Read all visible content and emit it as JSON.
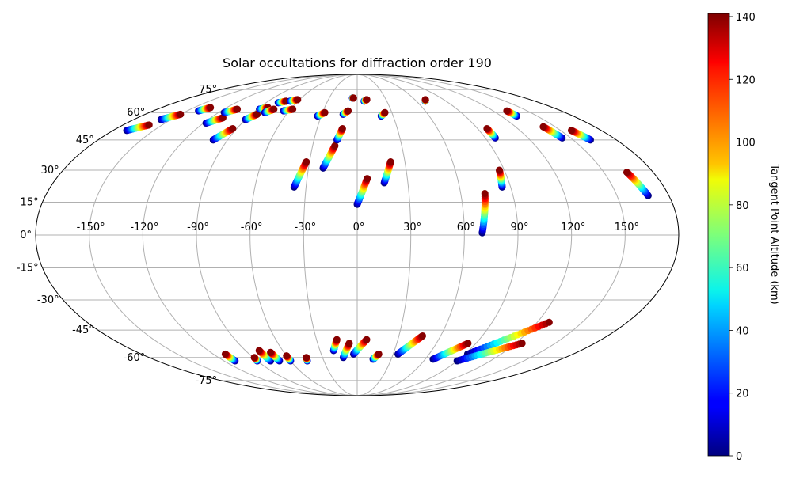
{
  "chart_data": {
    "type": "scatter",
    "projection": "mollweide",
    "title": "Solar occultations for diffraction order 190",
    "xlabel": "",
    "ylabel": "",
    "lon_ticks": [
      {
        "value": -150,
        "label": "-150°"
      },
      {
        "value": -120,
        "label": "-120°"
      },
      {
        "value": -90,
        "label": "-90°"
      },
      {
        "value": -60,
        "label": "-60°"
      },
      {
        "value": -30,
        "label": "-30°"
      },
      {
        "value": 0,
        "label": "0°"
      },
      {
        "value": 30,
        "label": "30°"
      },
      {
        "value": 60,
        "label": "60°"
      },
      {
        "value": 90,
        "label": "90°"
      },
      {
        "value": 120,
        "label": "120°"
      },
      {
        "value": 150,
        "label": "150°"
      }
    ],
    "lat_ticks": [
      {
        "value": 75,
        "label": "75°"
      },
      {
        "value": 60,
        "label": "60°"
      },
      {
        "value": 45,
        "label": "45°"
      },
      {
        "value": 30,
        "label": "30°"
      },
      {
        "value": 15,
        "label": "15°"
      },
      {
        "value": 0,
        "label": "0°"
      },
      {
        "value": -15,
        "label": "-15°"
      },
      {
        "value": -30,
        "label": "-30°"
      },
      {
        "value": -45,
        "label": "-45°"
      },
      {
        "value": -60,
        "label": "-60°"
      },
      {
        "value": -75,
        "label": "-75°"
      }
    ],
    "colorbar": {
      "label": "Tangent Point Altitude (km)",
      "colormap": "jet",
      "range": [
        0,
        141
      ],
      "ticks": [
        {
          "value": 0,
          "label": "0"
        },
        {
          "value": 20,
          "label": "20"
        },
        {
          "value": 40,
          "label": "40"
        },
        {
          "value": 60,
          "label": "60"
        },
        {
          "value": 80,
          "label": "80"
        },
        {
          "value": 100,
          "label": "100"
        },
        {
          "value": 120,
          "label": "120"
        },
        {
          "value": 140,
          "label": "140"
        }
      ]
    },
    "alt_range": [
      0,
      140
    ],
    "tracks": [
      {
        "lon_start": -170,
        "lat_start": 50,
        "lon_end": -160,
        "lat_end": 53
      },
      {
        "lon_start": -158,
        "lat_start": 56,
        "lon_end": -150,
        "lat_end": 59
      },
      {
        "lon_start": -140,
        "lat_start": 61,
        "lon_end": -135,
        "lat_end": 63
      },
      {
        "lon_start": -118,
        "lat_start": 54,
        "lon_end": -110,
        "lat_end": 57
      },
      {
        "lon_start": -115,
        "lat_start": 60,
        "lon_end": -108,
        "lat_end": 62
      },
      {
        "lon_start": -100,
        "lat_start": 45,
        "lon_end": -93,
        "lat_end": 51
      },
      {
        "lon_start": -90,
        "lat_start": 56,
        "lon_end": -85,
        "lat_end": 59
      },
      {
        "lon_start": -88,
        "lat_start": 62,
        "lon_end": -82,
        "lat_end": 63
      },
      {
        "lon_start": -80,
        "lat_start": 60,
        "lon_end": -75,
        "lat_end": 62
      },
      {
        "lon_start": -78,
        "lat_start": 66,
        "lon_end": -72,
        "lat_end": 67
      },
      {
        "lon_start": -68,
        "lat_start": 67,
        "lon_end": -62,
        "lat_end": 68
      },
      {
        "lon_start": -65,
        "lat_start": 61,
        "lon_end": -58,
        "lat_end": 62
      },
      {
        "lon_start": -37,
        "lat_start": 22,
        "lon_end": -32,
        "lat_end": 34
      },
      {
        "lon_start": -33,
        "lat_start": 58,
        "lon_end": -28,
        "lat_end": 60
      },
      {
        "lon_start": -21,
        "lat_start": 31,
        "lon_end": -15,
        "lat_end": 42
      },
      {
        "lon_start": -14,
        "lat_start": 45,
        "lon_end": -11,
        "lat_end": 51
      },
      {
        "lon_start": -12,
        "lat_start": 59,
        "lon_end": -8,
        "lat_end": 61
      },
      {
        "lon_start": -5,
        "lat_start": 69,
        "lon_end": -4,
        "lat_end": 69
      },
      {
        "lon_start": 0,
        "lat_start": 14,
        "lon_end": 6,
        "lat_end": 26
      },
      {
        "lon_start": 7,
        "lat_start": 67,
        "lon_end": 10,
        "lat_end": 68
      },
      {
        "lon_start": 16,
        "lat_start": 24,
        "lon_end": 21,
        "lat_end": 34
      },
      {
        "lon_start": 20,
        "lat_start": 58,
        "lon_end": 24,
        "lat_end": 60
      },
      {
        "lon_start": 69,
        "lat_start": 67,
        "lon_end": 71,
        "lat_end": 68
      },
      {
        "lon_start": 70,
        "lat_start": 1,
        "lon_end": 74,
        "lat_end": 19
      },
      {
        "lon_start": 85,
        "lat_start": 22,
        "lon_end": 87,
        "lat_end": 30
      },
      {
        "lon_start": 97,
        "lat_start": 46,
        "lon_end": 97,
        "lat_end": 51
      },
      {
        "lon_start": 133,
        "lat_start": 58,
        "lon_end": 132,
        "lat_end": 61
      },
      {
        "lon_start": 144,
        "lat_start": 46,
        "lon_end": 141,
        "lat_end": 52
      },
      {
        "lon_start": 162,
        "lat_start": 45,
        "lon_end": 158,
        "lat_end": 50
      },
      {
        "lon_start": 168,
        "lat_start": 18,
        "lon_end": 164,
        "lat_end": 29
      },
      {
        "lon_start": -110,
        "lat_start": -62,
        "lon_end": -110,
        "lat_end": -58
      },
      {
        "lon_start": -90,
        "lat_start": -62,
        "lon_end": -89,
        "lat_end": -60
      },
      {
        "lon_start": -78,
        "lat_start": -62,
        "lon_end": -79,
        "lat_end": -56
      },
      {
        "lon_start": -70,
        "lat_start": -62,
        "lon_end": -71,
        "lat_end": -57
      },
      {
        "lon_start": -60,
        "lat_start": -62,
        "lon_end": -60,
        "lat_end": -59
      },
      {
        "lon_start": -45,
        "lat_start": -62,
        "lon_end": -44,
        "lat_end": -60
      },
      {
        "lon_start": -19,
        "lat_start": -56,
        "lon_end": -15,
        "lat_end": -50
      },
      {
        "lon_start": -12,
        "lat_start": -60,
        "lon_end": -6,
        "lat_end": -52
      },
      {
        "lon_start": -3,
        "lat_start": -58,
        "lon_end": 7,
        "lat_end": -50
      },
      {
        "lon_start": 14,
        "lat_start": -61,
        "lon_end": 18,
        "lat_end": -58
      },
      {
        "lon_start": 34,
        "lat_start": -58,
        "lon_end": 47,
        "lat_end": -48
      },
      {
        "lon_start": 67,
        "lat_start": -61,
        "lon_end": 84,
        "lat_end": -52
      },
      {
        "lon_start": 92,
        "lat_start": -58,
        "lon_end": 128,
        "lat_end": -41
      },
      {
        "lon_start": 90,
        "lat_start": -62,
        "lon_end": 125,
        "lat_end": -52
      }
    ]
  }
}
